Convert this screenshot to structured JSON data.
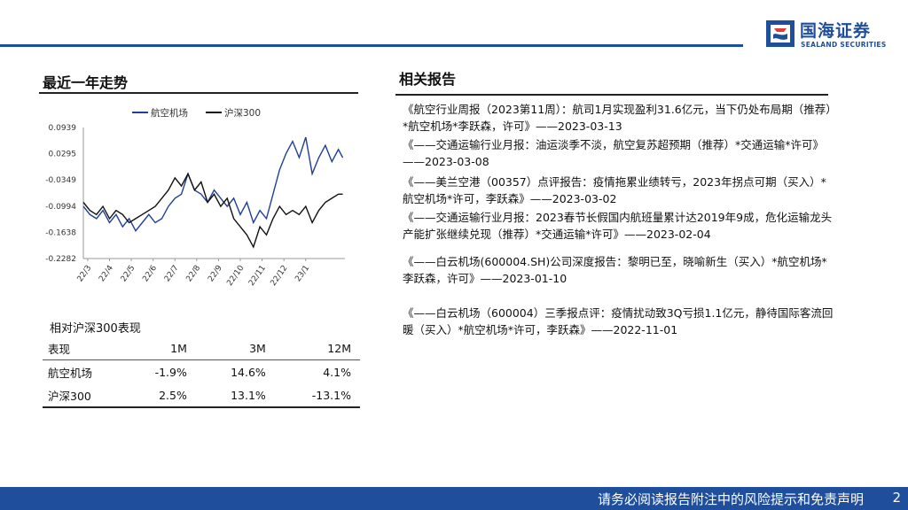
{
  "brand": {
    "name_cn": "国海证券",
    "name_en": "SEALAND SECURITIES",
    "color": "#1f4e9c"
  },
  "left": {
    "title": "最近一年走势"
  },
  "right": {
    "title": "相关报告",
    "reports": [
      "《航空行业周报（2023第11周）：航司1月实现盈利31.6亿元，当下仍处布局期（推荐）*航空机场*李跃森，许可》——2023-03-13",
      "《——交通运输行业月报：油运淡季不淡，航空复苏超预期（推荐）*交通运输*许可》——2023-03-08",
      "《——美兰空港（00357）点评报告：疫情拖累业绩转亏，2023年拐点可期（买入）*航空机场*许可，李跃森》——2023-03-02",
      "《——交通运输行业月报：2023春节长假国内航班量累计达2019年9成，危化运输龙头产能扩张继续兑现（推荐）*交通运输*许可》——2023-02-04",
      "《——白云机场(600004.SH)公司深度报告：黎明已至，晓喻新生（买入）*航空机场*李跃森，许可》——2023-01-10",
      "《——白云机场（600004）三季报点评：疫情扰动致3Q亏损1.1亿元，静待国际客流回暖（买入）*航空机场*许可，李跃森》——2022-11-01"
    ]
  },
  "performance": {
    "title": "相对沪深300表现",
    "headers": [
      "表现",
      "1M",
      "3M",
      "12M"
    ],
    "rows": [
      [
        "航空机场",
        "-1.9%",
        "14.6%",
        "4.1%"
      ],
      [
        "沪深300",
        "2.5%",
        "13.1%",
        "-13.1%"
      ]
    ]
  },
  "chart_data": {
    "type": "line",
    "title": "",
    "xlabel": "",
    "ylabel": "",
    "legend_position": "top",
    "y_ticks": [
      "0.0939",
      "0.0295",
      "-0.0349",
      "-0.0994",
      "-0.1638",
      "-0.2282"
    ],
    "ylim": [
      -0.2282,
      0.0939
    ],
    "x_ticks": [
      "22/3",
      "22/4",
      "22/5",
      "22/6",
      "22/7",
      "22/8",
      "22/9",
      "22/10",
      "22/11",
      "22/12",
      "23/1"
    ],
    "grid": false,
    "series": [
      {
        "name": "航空机场",
        "color": "#1f3f99",
        "x": [
          0,
          0.3,
          0.6,
          0.9,
          1.2,
          1.5,
          1.8,
          2.1,
          2.4,
          2.7,
          3.0,
          3.3,
          3.6,
          3.9,
          4.2,
          4.5,
          4.8,
          5.1,
          5.4,
          5.7,
          6.0,
          6.3,
          6.6,
          6.9,
          7.2,
          7.5,
          7.8,
          8.1,
          8.4,
          8.7,
          9.0,
          9.3,
          9.6,
          9.9,
          10.2,
          10.5,
          10.8,
          11.1,
          11.4,
          11.7,
          11.9
        ],
        "values": [
          -0.1,
          -0.12,
          -0.13,
          -0.11,
          -0.14,
          -0.12,
          -0.15,
          -0.13,
          -0.16,
          -0.14,
          -0.12,
          -0.14,
          -0.13,
          -0.1,
          -0.08,
          -0.07,
          -0.02,
          -0.06,
          -0.07,
          -0.09,
          -0.06,
          -0.08,
          -0.1,
          -0.08,
          -0.12,
          -0.09,
          -0.14,
          -0.11,
          -0.13,
          -0.07,
          -0.01,
          0.03,
          0.06,
          0.02,
          0.07,
          -0.02,
          0.02,
          0.05,
          0.01,
          0.04,
          0.02
        ]
      },
      {
        "name": "沪深300",
        "color": "#111111",
        "x": [
          0,
          0.3,
          0.6,
          0.9,
          1.2,
          1.5,
          1.8,
          2.1,
          2.4,
          2.7,
          3.0,
          3.3,
          3.6,
          3.9,
          4.2,
          4.5,
          4.8,
          5.1,
          5.4,
          5.7,
          6.0,
          6.3,
          6.6,
          6.9,
          7.2,
          7.5,
          7.8,
          8.1,
          8.4,
          8.7,
          9.0,
          9.3,
          9.6,
          9.9,
          10.2,
          10.5,
          10.8,
          11.1,
          11.4,
          11.7,
          11.9
        ],
        "values": [
          -0.09,
          -0.11,
          -0.12,
          -0.1,
          -0.13,
          -0.11,
          -0.12,
          -0.14,
          -0.13,
          -0.12,
          -0.11,
          -0.1,
          -0.08,
          -0.06,
          -0.03,
          -0.05,
          -0.02,
          -0.06,
          -0.04,
          -0.09,
          -0.07,
          -0.1,
          -0.08,
          -0.13,
          -0.15,
          -0.17,
          -0.2,
          -0.15,
          -0.17,
          -0.13,
          -0.1,
          -0.12,
          -0.11,
          -0.12,
          -0.1,
          -0.14,
          -0.11,
          -0.09,
          -0.08,
          -0.07,
          -0.07
        ]
      }
    ]
  },
  "footer": {
    "disclaimer": "请务必阅读报告附注中的风险提示和免责声明",
    "page": "2"
  }
}
